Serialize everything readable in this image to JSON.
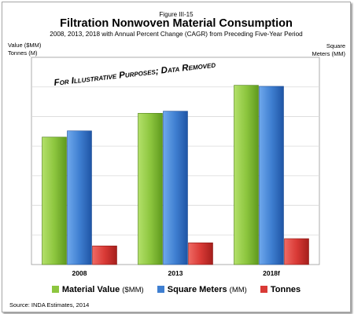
{
  "figure_label": "Figure III-15",
  "title": "Filtration  Nonwoven Material  Consumption",
  "subtitle": "2008, 2013, 2018 with Annual Percent Change (CAGR) from Preceding Five-Year Period",
  "y_label_left_line1": "Value ($MM)",
  "y_label_left_line2": "Tonnes (M)",
  "y_label_right_line1": "Square",
  "y_label_right_line2": "Meters (MM)",
  "watermark": "For Illustrative Purposes; Data Removed",
  "source": "Source: INDA Estimates, 2014",
  "legend": [
    {
      "label": "Material Value",
      "unit": "($MM)"
    },
    {
      "label": "Square Meters",
      "unit": "(MM)"
    },
    {
      "label": "Tonnes",
      "unit": ""
    }
  ],
  "colors": {
    "material_value": "#8dc63f",
    "square_meters": "#3f7fd1",
    "tonnes": "#d93a36"
  },
  "chart_data": {
    "type": "bar",
    "categories": [
      "2008",
      "2013",
      "2018f"
    ],
    "series": [
      {
        "name": "Material Value ($MM)",
        "values": [
          61.5,
          73,
          86.5
        ]
      },
      {
        "name": "Square Meters (MM)",
        "values": [
          64.5,
          74,
          86
        ]
      },
      {
        "name": "Tonnes",
        "values": [
          9,
          10.5,
          12.5
        ]
      }
    ],
    "ylim": [
      0,
      100
    ],
    "grid": true,
    "legend_position": "bottom"
  }
}
